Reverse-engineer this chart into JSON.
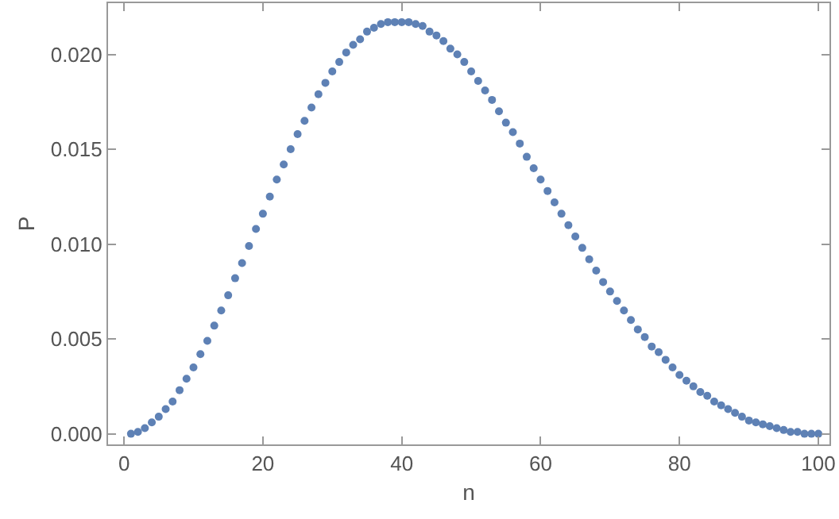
{
  "chart_data": {
    "type": "scatter",
    "xlabel": "n",
    "ylabel": "P",
    "x": [
      1,
      2,
      3,
      4,
      5,
      6,
      7,
      8,
      9,
      10,
      11,
      12,
      13,
      14,
      15,
      16,
      17,
      18,
      19,
      20,
      21,
      22,
      23,
      24,
      25,
      26,
      27,
      28,
      29,
      30,
      31,
      32,
      33,
      34,
      35,
      36,
      37,
      38,
      39,
      40,
      41,
      42,
      43,
      44,
      45,
      46,
      47,
      48,
      49,
      50,
      51,
      52,
      53,
      54,
      55,
      56,
      57,
      58,
      59,
      60,
      61,
      62,
      63,
      64,
      65,
      66,
      67,
      68,
      69,
      70,
      71,
      72,
      73,
      74,
      75,
      76,
      77,
      78,
      79,
      80,
      81,
      82,
      83,
      84,
      85,
      86,
      87,
      88,
      89,
      90,
      91,
      92,
      93,
      94,
      95,
      96,
      97,
      98,
      99,
      100
    ],
    "series": [
      {
        "color": "#5e81b5",
        "values": [
          0.0,
          0.0001,
          0.0003,
          0.0006,
          0.0009,
          0.0013,
          0.0017,
          0.0023,
          0.0029,
          0.0035,
          0.0042,
          0.0049,
          0.0057,
          0.0065,
          0.0073,
          0.0082,
          0.009,
          0.0099,
          0.0108,
          0.0116,
          0.0125,
          0.0134,
          0.0142,
          0.015,
          0.0158,
          0.0165,
          0.0172,
          0.0179,
          0.0185,
          0.0191,
          0.0196,
          0.0201,
          0.0205,
          0.0208,
          0.0212,
          0.0214,
          0.0216,
          0.0217,
          0.0217,
          0.0217,
          0.0217,
          0.0216,
          0.0215,
          0.0212,
          0.021,
          0.0207,
          0.0203,
          0.02,
          0.0196,
          0.0191,
          0.0186,
          0.0181,
          0.0176,
          0.017,
          0.0164,
          0.0159,
          0.0153,
          0.0146,
          0.014,
          0.0134,
          0.0128,
          0.0122,
          0.0116,
          0.011,
          0.0104,
          0.0098,
          0.0092,
          0.0086,
          0.008,
          0.0075,
          0.007,
          0.0065,
          0.006,
          0.0055,
          0.0051,
          0.0046,
          0.0043,
          0.0039,
          0.0035,
          0.0031,
          0.0028,
          0.0025,
          0.0022,
          0.002,
          0.0017,
          0.0015,
          0.0013,
          0.0011,
          0.0009,
          0.0007,
          0.0006,
          0.0005,
          0.0004,
          0.0003,
          0.0002,
          0.0001,
          0.0001,
          0.0,
          0.0,
          0.0
        ]
      }
    ],
    "xlim": [
      -2.3,
      101.6
    ],
    "xticks": [
      0,
      20,
      40,
      60,
      80,
      100
    ],
    "ylim": [
      -0.00056,
      0.0227
    ],
    "yticks": [
      {
        "value": 0,
        "label": "0.000"
      },
      {
        "value": 0.005,
        "label": "0.005"
      },
      {
        "value": 0.01,
        "label": "0.010"
      },
      {
        "value": 0.015,
        "label": "0.015"
      },
      {
        "value": 0.02,
        "label": "0.020"
      }
    ]
  }
}
